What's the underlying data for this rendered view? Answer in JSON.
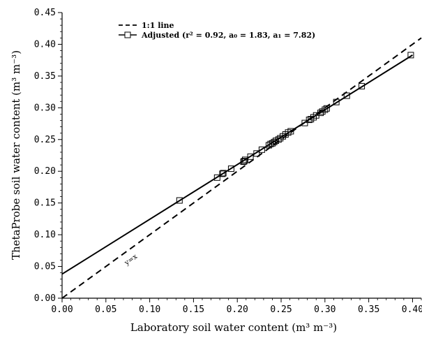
{
  "chart_data": {
    "type": "scatter",
    "xlabel": "Laboratory soil water content (m³ m⁻³)",
    "ylabel": "ThetaProbe soil water content (m³ m⁻³)",
    "xlim": [
      0.0,
      0.41
    ],
    "ylim": [
      0.0,
      0.45
    ],
    "x_ticks": [
      "0.00",
      "0.05",
      "0.10",
      "0.15",
      "0.20",
      "0.25",
      "0.30",
      "0.35",
      "0.40"
    ],
    "y_ticks": [
      "0.00",
      "0.05",
      "0.10",
      "0.15",
      "0.20",
      "0.25",
      "0.30",
      "0.35",
      "0.40",
      "0.45"
    ],
    "legend_position": "top-left",
    "grid": false,
    "series": [
      {
        "name": "1:1 line",
        "style": "dashed",
        "x": [
          0.0,
          0.41
        ],
        "y": [
          0.0,
          0.41
        ]
      },
      {
        "name": "Adjusted (r² = 0.92, a₀ = 1.83, a₁ = 7.82)",
        "style": "solid",
        "marker": "square",
        "line": {
          "x": [
            0.0,
            0.4
          ],
          "y": [
            0.038,
            0.383
          ]
        },
        "points": {
          "x": [
            0.134,
            0.177,
            0.183,
            0.184,
            0.193,
            0.207,
            0.208,
            0.209,
            0.215,
            0.222,
            0.228,
            0.236,
            0.238,
            0.24,
            0.242,
            0.244,
            0.247,
            0.249,
            0.252,
            0.255,
            0.258,
            0.261,
            0.277,
            0.282,
            0.284,
            0.287,
            0.29,
            0.295,
            0.297,
            0.3,
            0.302,
            0.313,
            0.325,
            0.342,
            0.398
          ],
          "y": [
            0.154,
            0.19,
            0.196,
            0.197,
            0.204,
            0.215,
            0.216,
            0.218,
            0.223,
            0.228,
            0.234,
            0.241,
            0.243,
            0.244,
            0.246,
            0.248,
            0.25,
            0.252,
            0.255,
            0.258,
            0.261,
            0.263,
            0.276,
            0.281,
            0.282,
            0.285,
            0.288,
            0.292,
            0.294,
            0.297,
            0.299,
            0.309,
            0.319,
            0.334,
            0.383
          ]
        }
      }
    ],
    "annotations": [
      {
        "text": "y=x",
        "x": 0.08,
        "y": 0.058
      }
    ]
  }
}
